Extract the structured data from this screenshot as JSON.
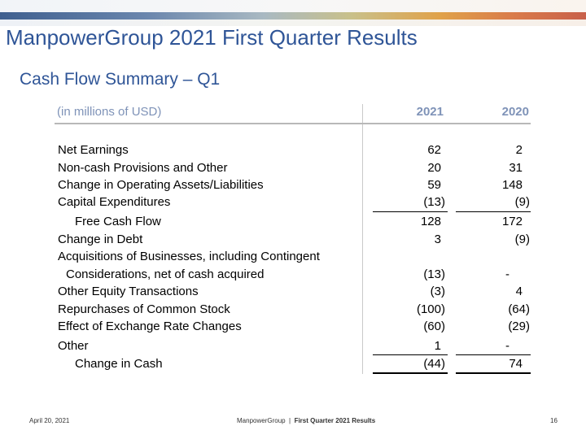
{
  "slide": {
    "title": "ManpowerGroup 2021 First Quarter Results",
    "subtitle": "Cash Flow Summary – Q1"
  },
  "table": {
    "unit_label": "(in millions of USD)",
    "col_2021": "2021",
    "col_2020": "2020",
    "rows": [
      {
        "label": "Net Earnings",
        "v2021": "62",
        "v2020": "2"
      },
      {
        "label": "Non-cash Provisions and Other",
        "v2021": "20",
        "v2020": "31"
      },
      {
        "label": "Change in Operating Assets/Liabilities",
        "v2021": "59",
        "v2020": "148"
      },
      {
        "label": "Capital Expenditures",
        "v2021": "(13)",
        "v2020": "(9)"
      },
      {
        "label": "Free Cash Flow",
        "v2021": "128",
        "v2020": "172"
      },
      {
        "label": "Change in Debt",
        "v2021": "3",
        "v2020": "(9)"
      },
      {
        "label": "Acquisitions of Businesses, including Contingent",
        "v2021": "",
        "v2020": ""
      },
      {
        "label": "Considerations, net of cash acquired",
        "v2021": "(13)",
        "v2020": "-"
      },
      {
        "label": "Other Equity Transactions",
        "v2021": "(3)",
        "v2020": "4"
      },
      {
        "label": "Repurchases of Common Stock",
        "v2021": "(100)",
        "v2020": "(64)"
      },
      {
        "label": "Effect of Exchange Rate Changes",
        "v2021": "(60)",
        "v2020": "(29)"
      },
      {
        "label": "Other",
        "v2021": "1",
        "v2020": "-"
      },
      {
        "label": "Change in Cash",
        "v2021": "(44)",
        "v2020": "74"
      }
    ]
  },
  "footer": {
    "date": "April 20, 2021",
    "company": "ManpowerGroup",
    "separator": "  |  ",
    "report": "First Quarter 2021 Results",
    "page": "16"
  }
}
